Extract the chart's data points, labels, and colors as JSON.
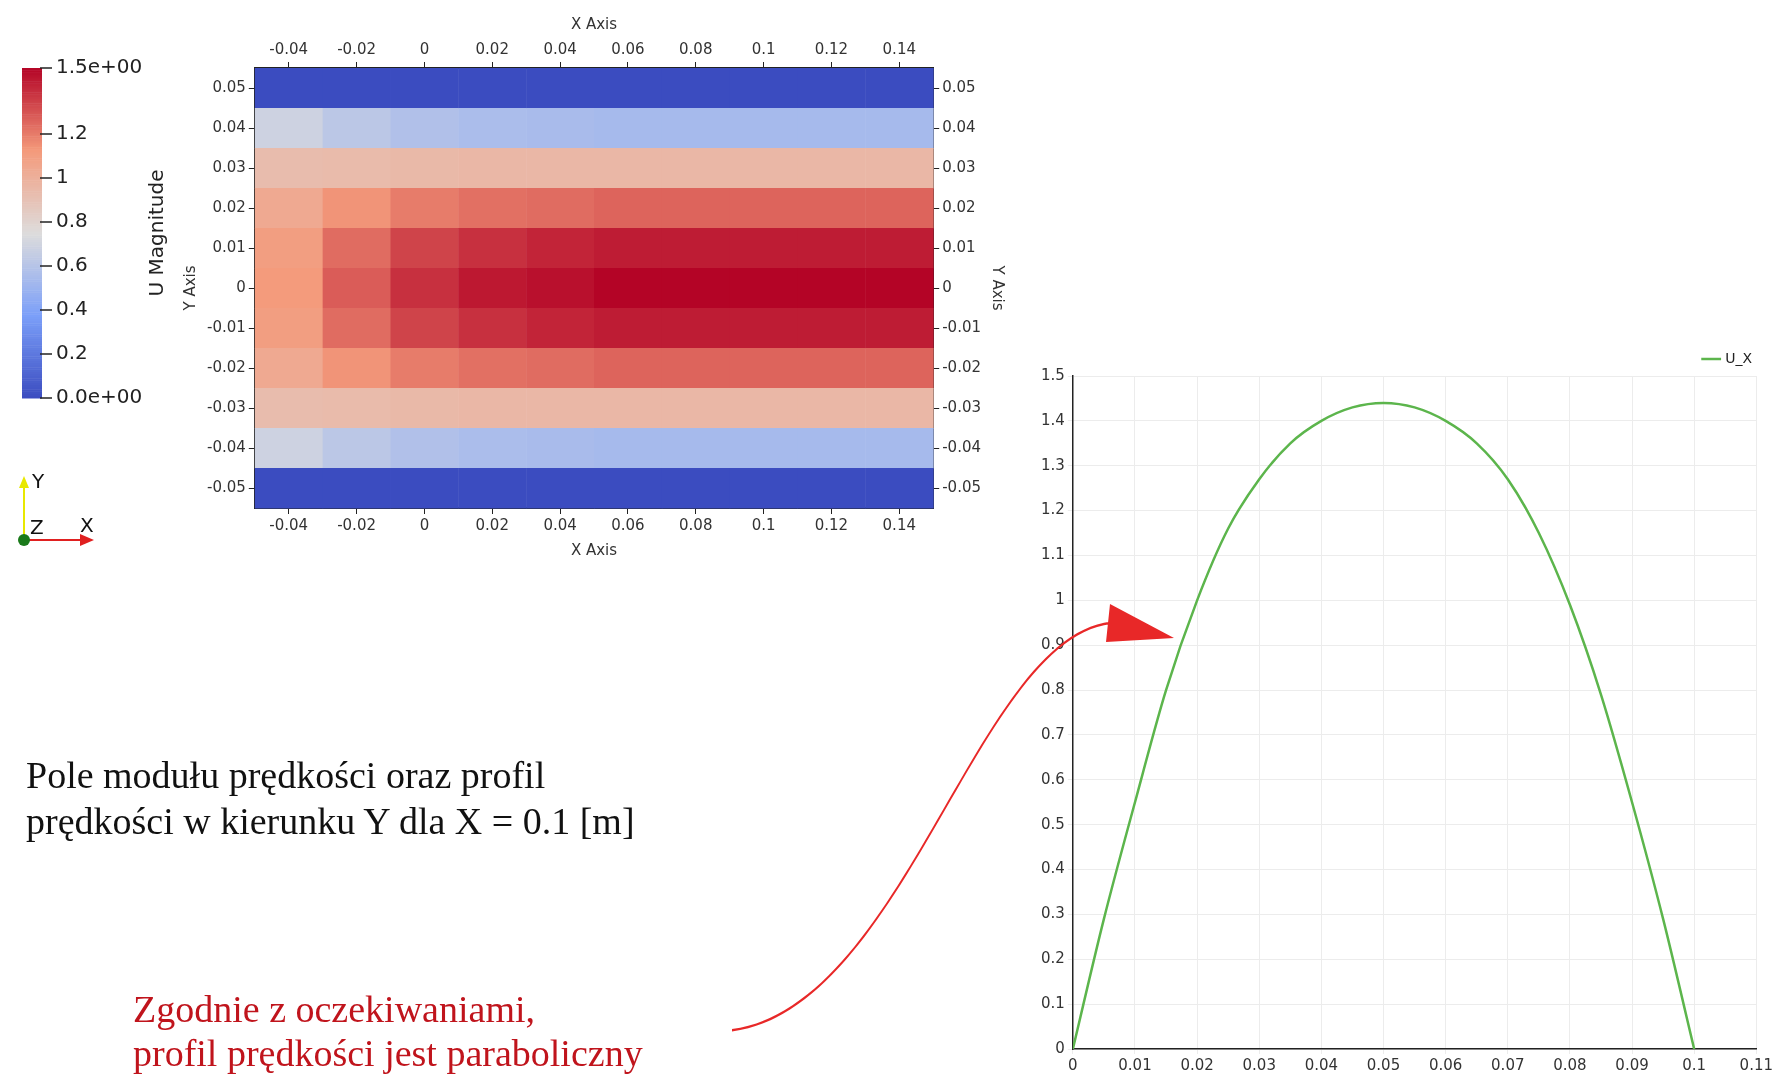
{
  "chart_data": [
    {
      "type": "heatmap",
      "xlabel": "X Axis",
      "x2label": "X Axis",
      "ylabel": "Y Axis",
      "y2label": "Y Axis",
      "clabel": "U Magnitude",
      "categories": [
        "-0.04",
        "-0.02",
        "0",
        "0.02",
        "0.04",
        "0.06",
        "0.08",
        "0.1",
        "0.12",
        "0.14"
      ],
      "y_categories": [
        "0.05",
        "0.04",
        "0.03",
        "0.02",
        "0.01",
        "0",
        "-0.01",
        "-0.02",
        "-0.03",
        "-0.04",
        "-0.05"
      ],
      "y2_categories": [
        "0.05",
        "0.04",
        "0.03",
        "0.02",
        "0.01",
        "0",
        "-0.01",
        "-0.02",
        "-0.03",
        "-0.04",
        "-0.05"
      ],
      "clim": [
        0,
        1.5
      ],
      "cticks": [
        {
          "value": 0,
          "label": "0.0e+00"
        },
        0.2,
        0.4,
        0.6,
        0.8,
        1,
        1.2,
        {
          "value": 1.5,
          "label": "1.5e+00"
        }
      ],
      "cells": [
        [
          0,
          0,
          0,
          0,
          0,
          0,
          0,
          0,
          0,
          0
        ],
        [
          0.69,
          0.62,
          0.58,
          0.56,
          0.55,
          0.54,
          0.54,
          0.54,
          0.54,
          0.54
        ],
        [
          0.93,
          0.94,
          0.95,
          0.96,
          0.96,
          0.96,
          0.96,
          0.96,
          0.96,
          0.96
        ],
        [
          1.04,
          1.14,
          1.2,
          1.23,
          1.24,
          1.26,
          1.26,
          1.26,
          1.26,
          1.26
        ],
        [
          1.1,
          1.24,
          1.34,
          1.39,
          1.42,
          1.44,
          1.44,
          1.44,
          1.44,
          1.44
        ],
        [
          1.12,
          1.28,
          1.39,
          1.45,
          1.47,
          1.5,
          1.5,
          1.5,
          1.5,
          1.5
        ],
        [
          1.1,
          1.24,
          1.34,
          1.39,
          1.42,
          1.44,
          1.44,
          1.44,
          1.44,
          1.44
        ],
        [
          1.04,
          1.14,
          1.2,
          1.23,
          1.24,
          1.26,
          1.26,
          1.26,
          1.26,
          1.26
        ],
        [
          0.93,
          0.94,
          0.95,
          0.96,
          0.96,
          0.96,
          0.96,
          0.96,
          0.96,
          0.96
        ],
        [
          0.69,
          0.62,
          0.58,
          0.56,
          0.55,
          0.54,
          0.54,
          0.54,
          0.54,
          0.54
        ],
        [
          0,
          0,
          0,
          0,
          0,
          0,
          0,
          0,
          0,
          0
        ]
      ],
      "annotations": [
        "Y",
        "Z",
        "X"
      ]
    },
    {
      "type": "line",
      "grid": true,
      "legend": "top right",
      "marker": "none",
      "xlim": [
        0,
        0.11
      ],
      "xticks": [
        0,
        0.01,
        0.02,
        0.03,
        0.04,
        0.05,
        0.06,
        0.07,
        0.08,
        0.09,
        0.1,
        0.11
      ],
      "ylim": [
        0,
        1.5
      ],
      "yticks": [
        0,
        0.1,
        0.2,
        0.3,
        0.4,
        0.5,
        0.6,
        0.7,
        0.8,
        0.9,
        1,
        1.1,
        1.2,
        1.3,
        1.4,
        1.5
      ],
      "series": [
        {
          "name": "U_X",
          "color": "#5cb54c",
          "x": [
            0,
            0.005,
            0.01,
            0.015,
            0.02,
            0.025,
            0.03,
            0.035,
            0.04,
            0.045,
            0.05,
            0.055,
            0.06,
            0.065,
            0.07,
            0.075,
            0.08,
            0.085,
            0.09,
            0.095,
            0.1
          ],
          "values": [
            0,
            0.29,
            0.55,
            0.8,
            1.0,
            1.16,
            1.27,
            1.35,
            1.4,
            1.43,
            1.44,
            1.43,
            1.4,
            1.35,
            1.27,
            1.15,
            0.99,
            0.79,
            0.55,
            0.29,
            0
          ]
        }
      ],
      "annotations": [
        "Pole modułu prędkości oraz profil\nprędkości w kierunku Y dla X = 0.1 [m]",
        "Zgodnie z oczekiwaniami,\nprofil prędkości jest paraboliczny"
      ]
    }
  ]
}
